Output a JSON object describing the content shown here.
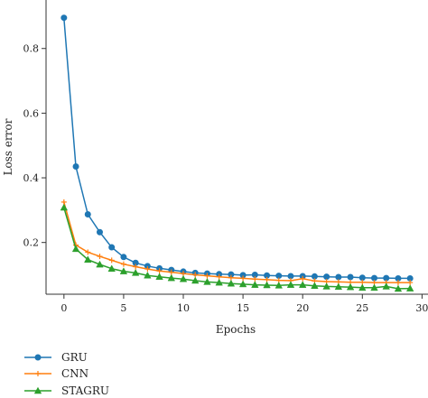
{
  "chart_data": {
    "type": "line",
    "title": "",
    "xlabel": "Epochs",
    "ylabel": "Loss error",
    "xlim": [
      -1.5,
      30.5
    ],
    "ylim": [
      0.04,
      0.95
    ],
    "x_ticks": [
      0,
      5,
      10,
      15,
      20,
      25,
      30
    ],
    "x_tick_labels": [
      "0",
      "5",
      "10",
      "15",
      "20",
      "25",
      "30"
    ],
    "y_ticks": [
      0.2,
      0.4,
      0.6,
      0.8
    ],
    "y_tick_labels": [
      "0.2",
      "0.4",
      "0.6",
      "0.8"
    ],
    "grid": false,
    "legend_position": "bottom-left, below plot",
    "x": [
      0,
      1,
      2,
      3,
      4,
      5,
      6,
      7,
      8,
      9,
      10,
      11,
      12,
      13,
      14,
      15,
      16,
      17,
      18,
      19,
      20,
      21,
      22,
      23,
      24,
      25,
      26,
      27,
      28,
      29
    ],
    "series": [
      {
        "name": "GRU",
        "color": "#1f77b4",
        "marker": "circle",
        "values": [
          0.895,
          0.435,
          0.287,
          0.232,
          0.185,
          0.155,
          0.137,
          0.127,
          0.12,
          0.115,
          0.11,
          0.106,
          0.104,
          0.102,
          0.101,
          0.099,
          0.1,
          0.098,
          0.097,
          0.096,
          0.096,
          0.095,
          0.094,
          0.093,
          0.093,
          0.091,
          0.09,
          0.09,
          0.089,
          0.089
        ]
      },
      {
        "name": "CNN",
        "color": "#ff7f0e",
        "marker": "plus",
        "values": [
          0.325,
          0.192,
          0.17,
          0.157,
          0.145,
          0.133,
          0.125,
          0.118,
          0.112,
          0.108,
          0.104,
          0.1,
          0.097,
          0.094,
          0.091,
          0.089,
          0.087,
          0.085,
          0.083,
          0.082,
          0.088,
          0.081,
          0.079,
          0.078,
          0.077,
          0.077,
          0.076,
          0.076,
          0.076,
          0.076
        ]
      },
      {
        "name": "STAGRU",
        "color": "#2ca02c",
        "marker": "triangle",
        "values": [
          0.308,
          0.18,
          0.147,
          0.132,
          0.119,
          0.111,
          0.106,
          0.098,
          0.094,
          0.09,
          0.087,
          0.082,
          0.078,
          0.076,
          0.073,
          0.071,
          0.069,
          0.068,
          0.067,
          0.069,
          0.069,
          0.066,
          0.064,
          0.063,
          0.062,
          0.06,
          0.06,
          0.064,
          0.057,
          0.058
        ]
      }
    ]
  }
}
